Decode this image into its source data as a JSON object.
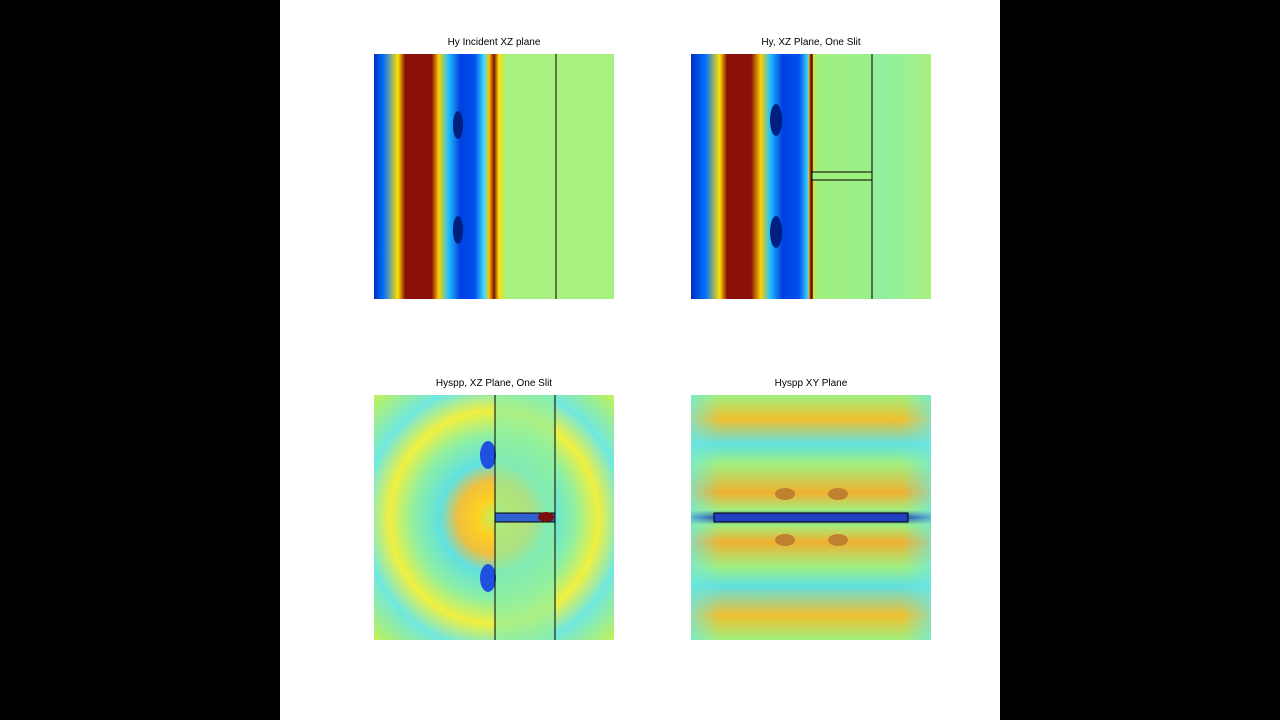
{
  "panels": [
    {
      "title": "Hy Incident XZ plane"
    },
    {
      "title": "Hy, XZ Plane, One Slit"
    },
    {
      "title": "Hyspp, XZ Plane, One Slit"
    },
    {
      "title": "Hyspp XY Plane"
    }
  ]
}
